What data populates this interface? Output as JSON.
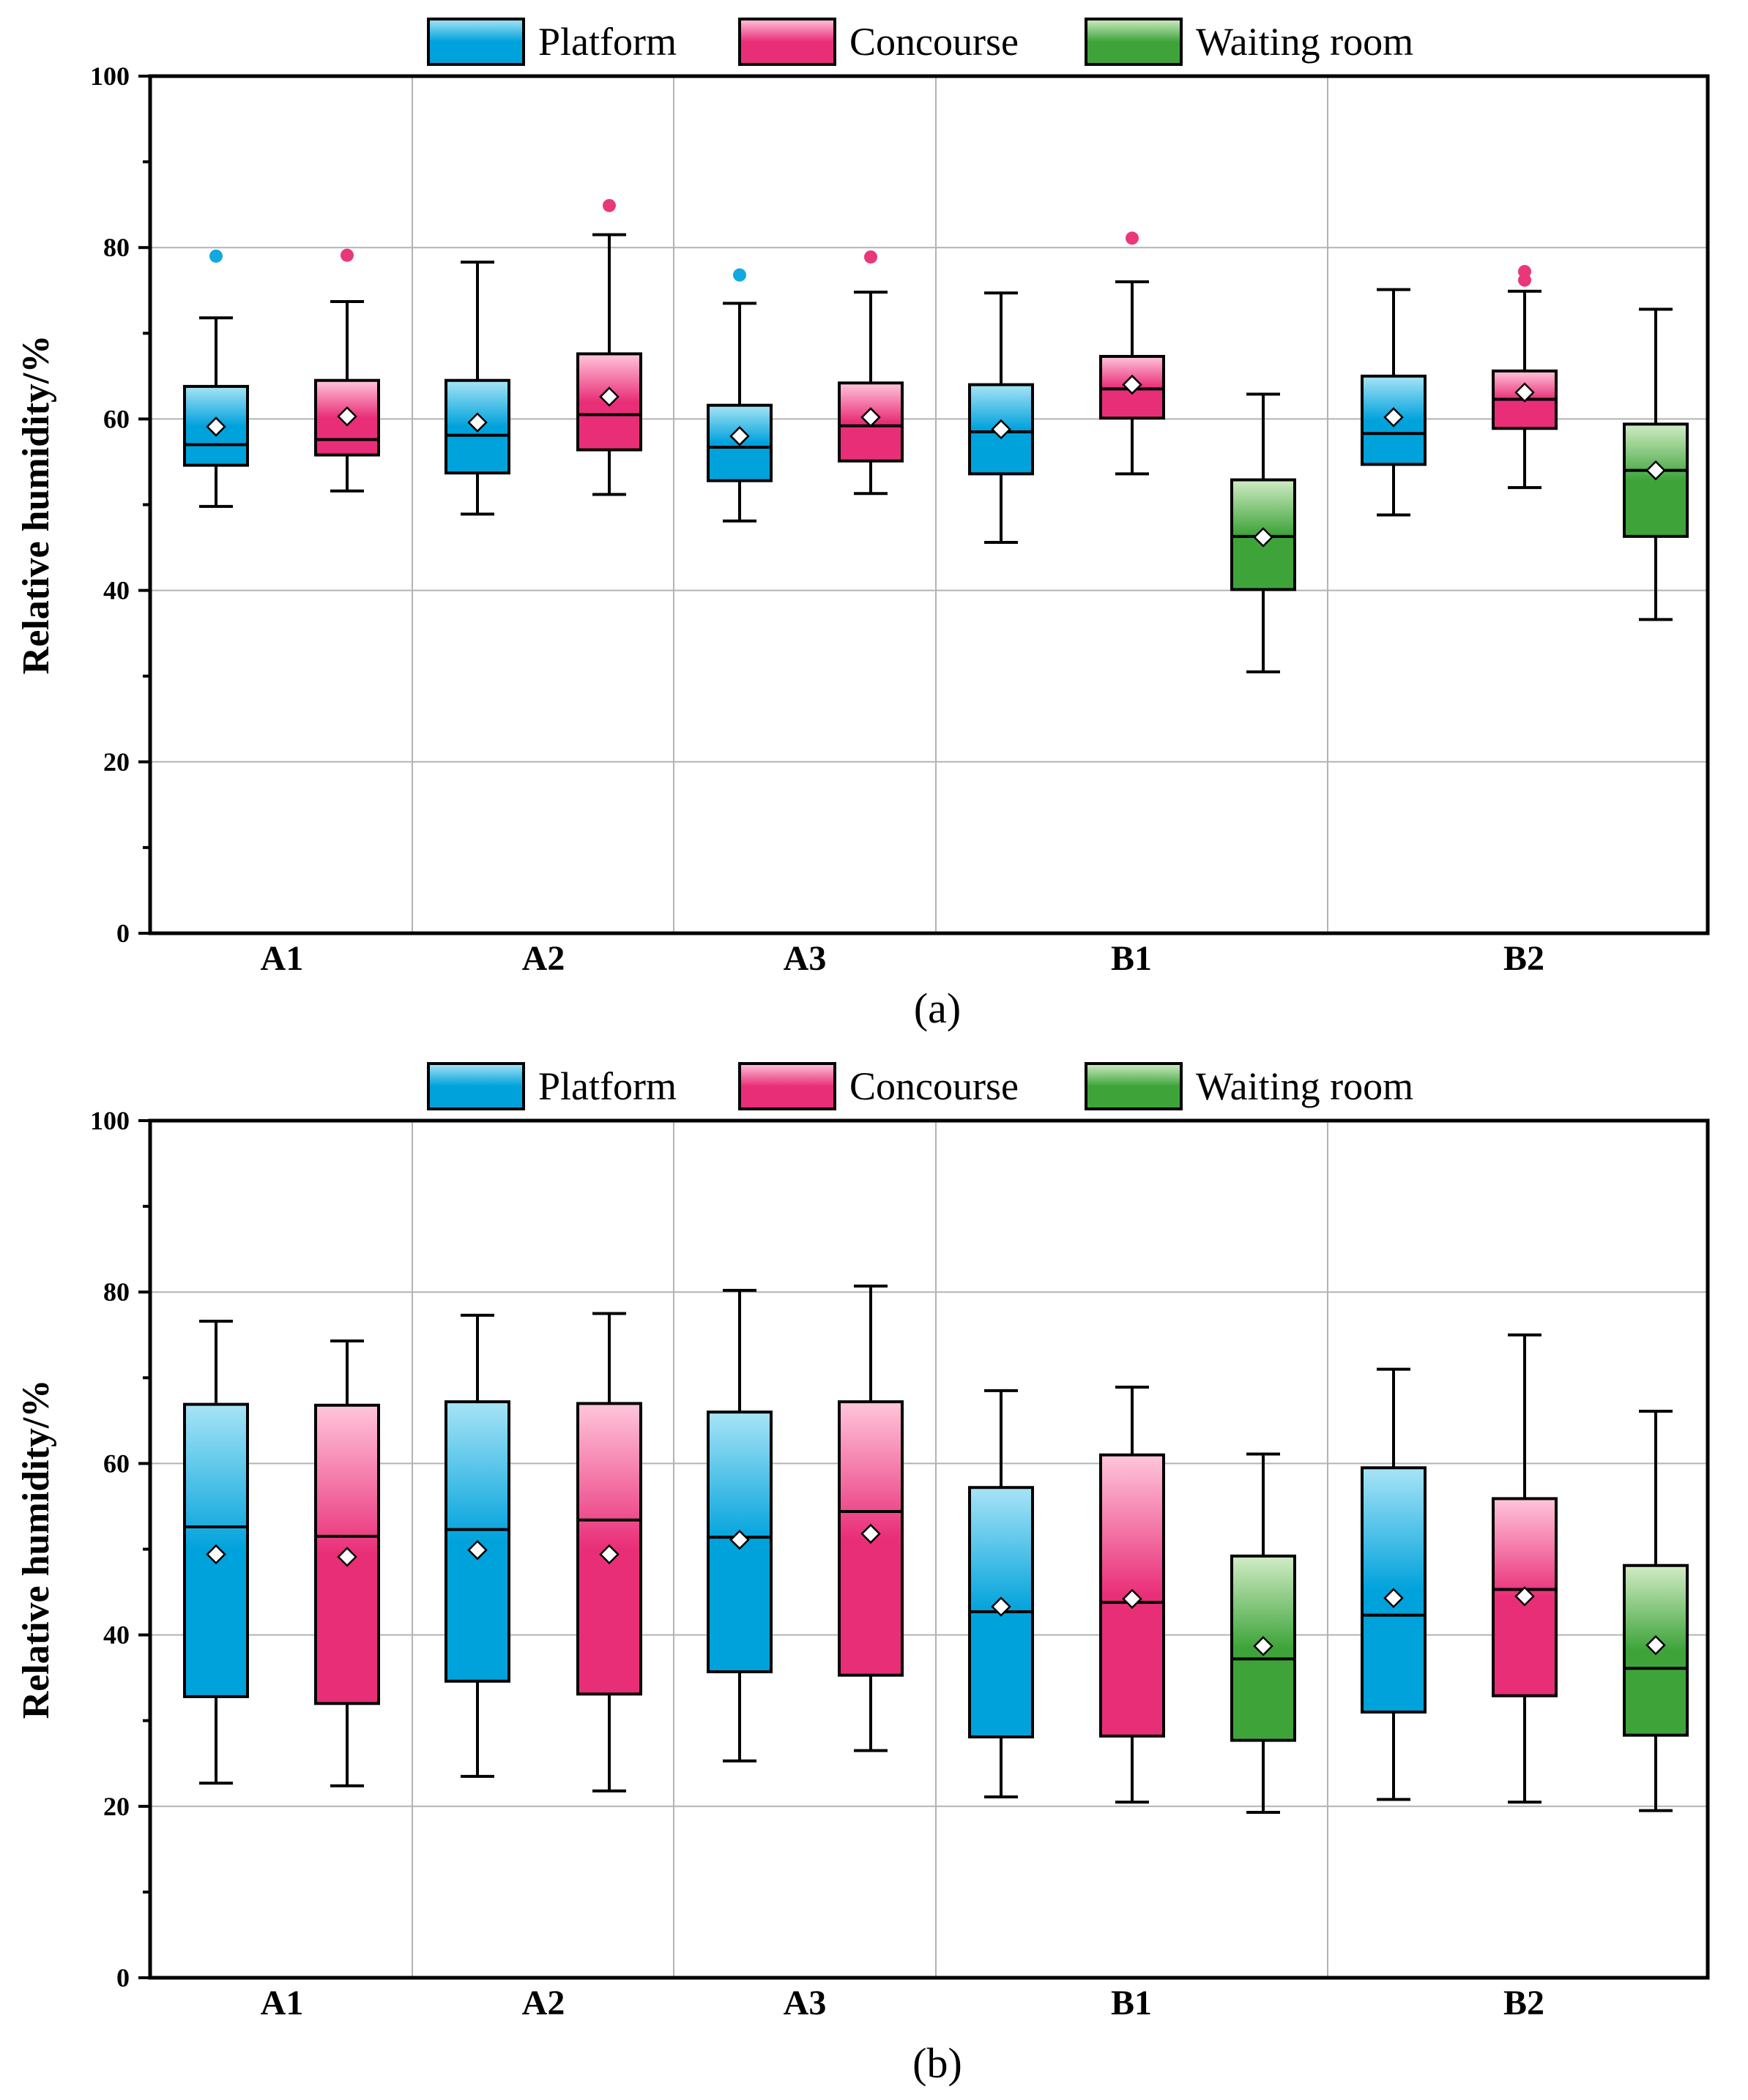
{
  "figure": {
    "colors": {
      "platform_top": "#a8e4f6",
      "platform_bottom": "#00a2dc",
      "concourse_top": "#ffc6db",
      "concourse_bottom": "#e92e78",
      "waiting_top": "#d2ecc6",
      "waiting_bottom": "#3ea43a",
      "platform_outlier": "#12a8e0",
      "concourse_outlier": "#e8387a",
      "grid": "#b3b3b3",
      "axis": "#000000"
    }
  },
  "chart_data": [
    {
      "type": "box",
      "panel_label": "(a)",
      "ylabel": "Relative humidity/%",
      "ylim": [
        0,
        100
      ],
      "yticks": [
        "0",
        "20",
        "40",
        "60",
        "80",
        "100"
      ],
      "grid": true,
      "legend": {
        "position": "top-center",
        "entries": [
          "Platform",
          "Concourse",
          "Waiting room"
        ]
      },
      "groups": [
        {
          "label": "A1",
          "boxes": [
            {
              "series": "Platform",
              "min": 49.8,
              "q1": 54.6,
              "median": 57.0,
              "q3": 63.8,
              "max": 71.8,
              "mean": 59.1,
              "outliers": [
                79.0
              ]
            },
            {
              "series": "Concourse",
              "min": 51.6,
              "q1": 55.8,
              "median": 57.6,
              "q3": 64.5,
              "max": 73.7,
              "mean": 60.3,
              "outliers": [
                79.1
              ]
            }
          ]
        },
        {
          "label": "A2",
          "boxes": [
            {
              "series": "Platform",
              "min": 48.9,
              "q1": 53.7,
              "median": 58.1,
              "q3": 64.5,
              "max": 78.3,
              "mean": 59.6,
              "outliers": []
            },
            {
              "series": "Concourse",
              "min": 51.2,
              "q1": 56.4,
              "median": 60.5,
              "q3": 67.6,
              "max": 81.5,
              "mean": 62.6,
              "outliers": [
                84.9
              ]
            }
          ]
        },
        {
          "label": "A3",
          "boxes": [
            {
              "series": "Platform",
              "min": 48.1,
              "q1": 52.8,
              "median": 56.7,
              "q3": 61.6,
              "max": 73.5,
              "mean": 58.0,
              "outliers": [
                76.8
              ]
            },
            {
              "series": "Concourse",
              "min": 51.3,
              "q1": 55.1,
              "median": 59.2,
              "q3": 64.2,
              "max": 74.8,
              "mean": 60.2,
              "outliers": [
                78.9
              ]
            }
          ]
        },
        {
          "label": "B1",
          "boxes": [
            {
              "series": "Platform",
              "min": 45.6,
              "q1": 53.6,
              "median": 58.5,
              "q3": 64.0,
              "max": 74.7,
              "mean": 58.8,
              "outliers": []
            },
            {
              "series": "Concourse",
              "min": 53.6,
              "q1": 60.1,
              "median": 63.5,
              "q3": 67.3,
              "max": 76.0,
              "mean": 64.0,
              "outliers": [
                81.1
              ]
            },
            {
              "series": "Waiting room",
              "min": 30.5,
              "q1": 40.1,
              "median": 46.3,
              "q3": 52.9,
              "max": 62.9,
              "mean": 46.2,
              "outliers": []
            }
          ]
        },
        {
          "label": "B2",
          "boxes": [
            {
              "series": "Platform",
              "min": 48.8,
              "q1": 54.7,
              "median": 58.3,
              "q3": 65.0,
              "max": 75.1,
              "mean": 60.2,
              "outliers": []
            },
            {
              "series": "Concourse",
              "min": 52.0,
              "q1": 58.9,
              "median": 62.3,
              "q3": 65.6,
              "max": 74.9,
              "mean": 63.1,
              "outliers": [
                76.2,
                77.2
              ]
            },
            {
              "series": "Waiting room",
              "min": 36.6,
              "q1": 46.3,
              "median": 54.0,
              "q3": 59.4,
              "max": 72.8,
              "mean": 54.0,
              "outliers": []
            }
          ]
        }
      ]
    },
    {
      "type": "box",
      "panel_label": "(b)",
      "ylabel": "Relative humidity/%",
      "ylim": [
        0,
        100
      ],
      "yticks": [
        "0",
        "20",
        "40",
        "60",
        "80",
        "100"
      ],
      "grid": true,
      "legend": {
        "position": "top-center",
        "entries": [
          "Platform",
          "Concourse",
          "Waiting room"
        ]
      },
      "groups": [
        {
          "label": "A1",
          "boxes": [
            {
              "series": "Platform",
              "min": 22.7,
              "q1": 32.8,
              "median": 52.6,
              "q3": 66.9,
              "max": 76.6,
              "mean": 49.4,
              "outliers": []
            },
            {
              "series": "Concourse",
              "min": 22.4,
              "q1": 32.0,
              "median": 51.5,
              "q3": 66.8,
              "max": 74.3,
              "mean": 49.1,
              "outliers": []
            }
          ]
        },
        {
          "label": "A2",
          "boxes": [
            {
              "series": "Platform",
              "min": 23.5,
              "q1": 34.6,
              "median": 52.3,
              "q3": 67.2,
              "max": 77.3,
              "mean": 49.9,
              "outliers": []
            },
            {
              "series": "Concourse",
              "min": 21.8,
              "q1": 33.1,
              "median": 53.4,
              "q3": 67.0,
              "max": 77.5,
              "mean": 49.4,
              "outliers": []
            }
          ]
        },
        {
          "label": "A3",
          "boxes": [
            {
              "series": "Platform",
              "min": 25.3,
              "q1": 35.7,
              "median": 51.4,
              "q3": 66.0,
              "max": 80.2,
              "mean": 51.1,
              "outliers": []
            },
            {
              "series": "Concourse",
              "min": 26.5,
              "q1": 35.3,
              "median": 54.4,
              "q3": 67.2,
              "max": 80.7,
              "mean": 51.8,
              "outliers": []
            }
          ]
        },
        {
          "label": "B1",
          "boxes": [
            {
              "series": "Platform",
              "min": 21.1,
              "q1": 28.1,
              "median": 42.7,
              "q3": 57.2,
              "max": 68.5,
              "mean": 43.3,
              "outliers": []
            },
            {
              "series": "Concourse",
              "min": 20.5,
              "q1": 28.2,
              "median": 43.8,
              "q3": 61.0,
              "max": 68.9,
              "mean": 44.2,
              "outliers": []
            },
            {
              "series": "Waiting room",
              "min": 19.3,
              "q1": 27.7,
              "median": 37.2,
              "q3": 49.2,
              "max": 61.1,
              "mean": 38.7,
              "outliers": []
            }
          ]
        },
        {
          "label": "B2",
          "boxes": [
            {
              "series": "Platform",
              "min": 20.8,
              "q1": 31.0,
              "median": 42.3,
              "q3": 59.5,
              "max": 71.0,
              "mean": 44.3,
              "outliers": []
            },
            {
              "series": "Concourse",
              "min": 20.5,
              "q1": 32.9,
              "median": 45.3,
              "q3": 55.9,
              "max": 75.0,
              "mean": 44.5,
              "outliers": []
            },
            {
              "series": "Waiting room",
              "min": 19.5,
              "q1": 28.3,
              "median": 36.1,
              "q3": 48.1,
              "max": 66.1,
              "mean": 38.8,
              "outliers": []
            }
          ]
        }
      ]
    }
  ]
}
